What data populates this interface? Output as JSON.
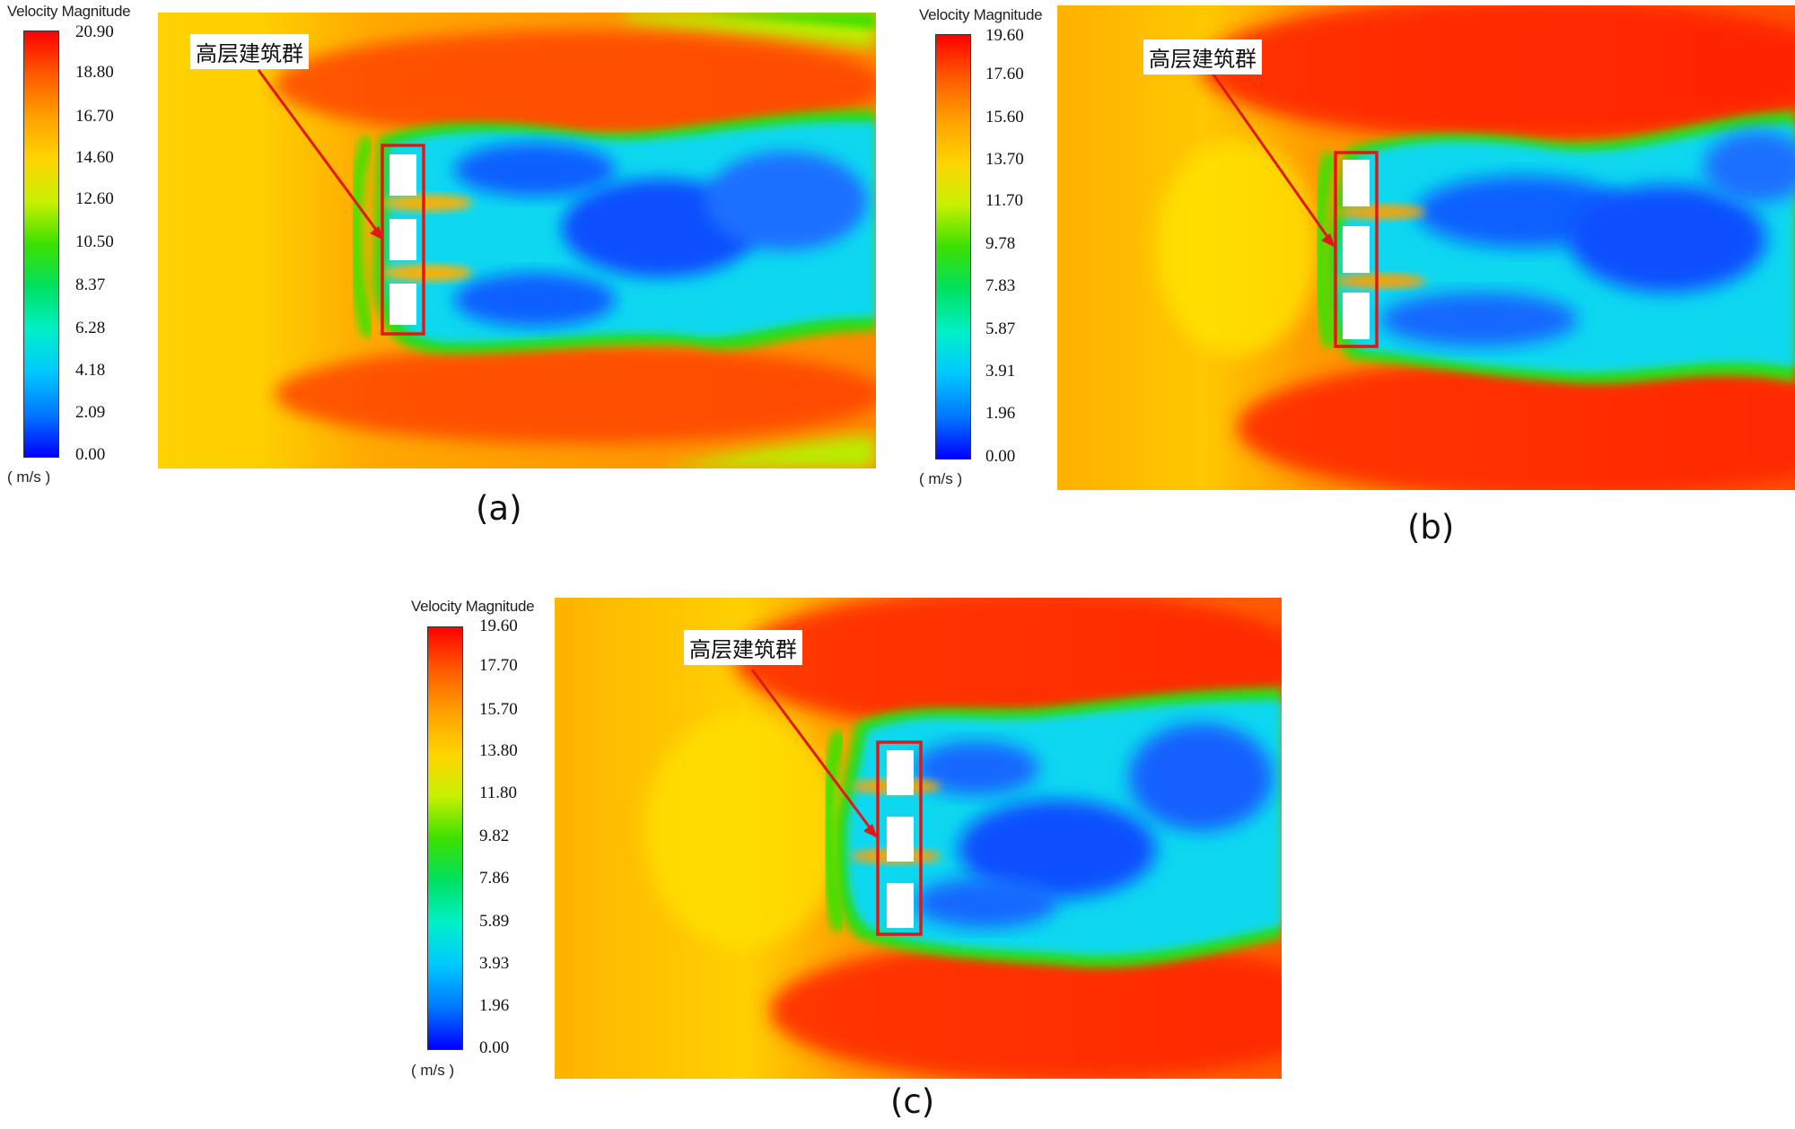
{
  "colormap_colors": [
    "#ff0000",
    "#ff5a00",
    "#ffa000",
    "#ffd400",
    "#c8f000",
    "#3ce000",
    "#00e060",
    "#00f0c8",
    "#00c8ff",
    "#0078ff",
    "#0000ff"
  ],
  "panels": [
    {
      "id": "a",
      "caption": "(a)",
      "colorbar": {
        "title": "Velocity Magnitude",
        "unit": "( m/s )",
        "ticks": [
          "20.90",
          "18.80",
          "16.70",
          "14.60",
          "12.60",
          "10.50",
          "8.37",
          "6.28",
          "4.18",
          "2.09",
          "0.00"
        ]
      },
      "label": "高层建筑群"
    },
    {
      "id": "b",
      "caption": "(b)",
      "colorbar": {
        "title": "Velocity Magnitude",
        "unit": "( m/s )",
        "ticks": [
          "19.60",
          "17.60",
          "15.60",
          "13.70",
          "11.70",
          "9.78",
          "7.83",
          "5.87",
          "3.91",
          "1.96",
          "0.00"
        ]
      },
      "label": "高层建筑群"
    },
    {
      "id": "c",
      "caption": "(c)",
      "colorbar": {
        "title": "Velocity Magnitude",
        "unit": "( m/s )",
        "ticks": [
          "19.60",
          "17.70",
          "15.70",
          "13.80",
          "11.80",
          "9.82",
          "7.86",
          "5.89",
          "3.93",
          "1.96",
          "0.00"
        ]
      },
      "label": "高层建筑群"
    }
  ]
}
